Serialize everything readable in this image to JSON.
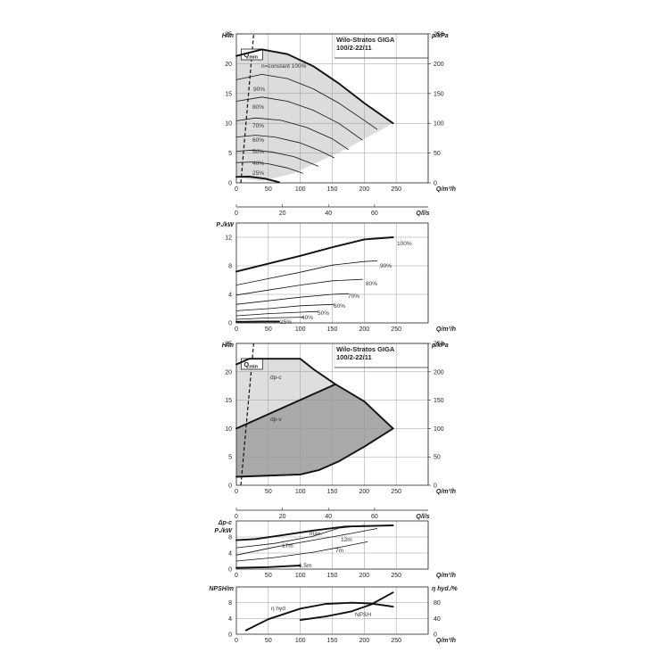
{
  "chart_data": [
    {
      "id": "head-speed",
      "type": "line",
      "title_lines": [
        "Wilo-Stratos GIGA",
        "100/2-22/11"
      ],
      "ylabel": "H/m",
      "ylabel_right": "p/kPa",
      "xlabel": "Q/m³/h",
      "xlabel_secondary": "Q/l/s",
      "xlim": [
        0,
        300
      ],
      "ylim": [
        0,
        25
      ],
      "x_ticks": [
        0,
        50,
        100,
        150,
        200,
        250
      ],
      "y_ticks": [
        0,
        5,
        10,
        15,
        20,
        25
      ],
      "right_ticks": [
        0,
        50,
        100,
        150,
        200,
        250
      ],
      "secondary_ticks": [
        0,
        20,
        40,
        60
      ],
      "qmin_label": "Q",
      "qmin_sub": "min",
      "qmin_line": [
        [
          7,
          0
        ],
        [
          27,
          25
        ]
      ],
      "operating_region": [
        [
          0,
          21.3
        ],
        [
          40,
          22.4
        ],
        [
          80,
          21.6
        ],
        [
          120,
          19.6
        ],
        [
          160,
          16.7
        ],
        [
          200,
          13.4
        ],
        [
          245,
          10
        ],
        [
          170,
          5.6
        ],
        [
          90,
          1.6
        ],
        [
          40,
          0.3
        ],
        [
          0,
          0.9
        ]
      ],
      "series": [
        {
          "name": "n=constant 100%",
          "bold": true,
          "points": [
            [
              0,
              21.3
            ],
            [
              40,
              22.4
            ],
            [
              80,
              21.6
            ],
            [
              120,
              19.6
            ],
            [
              160,
              16.7
            ],
            [
              200,
              13.4
            ],
            [
              245,
              10
            ]
          ]
        },
        {
          "name": "90%",
          "bold": false,
          "points": [
            [
              0,
              17.3
            ],
            [
              40,
              18.2
            ],
            [
              80,
              17.5
            ],
            [
              120,
              15.8
            ],
            [
              160,
              13.4
            ],
            [
              200,
              10.5
            ],
            [
              220,
              9.0
            ]
          ]
        },
        {
          "name": "80%",
          "bold": false,
          "points": [
            [
              0,
              13.7
            ],
            [
              40,
              14.4
            ],
            [
              80,
              13.7
            ],
            [
              120,
              12.2
            ],
            [
              160,
              10.0
            ],
            [
              197,
              7.2
            ]
          ]
        },
        {
          "name": "70%",
          "bold": false,
          "points": [
            [
              0,
              10.4
            ],
            [
              30,
              10.9
            ],
            [
              70,
              10.5
            ],
            [
              110,
              9.3
            ],
            [
              150,
              7.4
            ],
            [
              175,
              5.6
            ]
          ]
        },
        {
          "name": "60%",
          "bold": false,
          "points": [
            [
              0,
              7.7
            ],
            [
              30,
              8.0
            ],
            [
              60,
              7.7
            ],
            [
              100,
              6.7
            ],
            [
              130,
              5.4
            ],
            [
              153,
              4.2
            ]
          ]
        },
        {
          "name": "50%",
          "bold": false,
          "points": [
            [
              0,
              5.3
            ],
            [
              25,
              5.5
            ],
            [
              55,
              5.2
            ],
            [
              90,
              4.4
            ],
            [
              128,
              2.8
            ]
          ]
        },
        {
          "name": "40%",
          "bold": false,
          "points": [
            [
              0,
              3.4
            ],
            [
              25,
              3.5
            ],
            [
              50,
              3.2
            ],
            [
              80,
              2.5
            ],
            [
              104,
              1.6
            ]
          ]
        },
        {
          "name": "25%",
          "bold": true,
          "points": [
            [
              0,
              1.0
            ],
            [
              20,
              1.05
            ],
            [
              45,
              0.7
            ],
            [
              67,
              0.1
            ]
          ]
        }
      ]
    },
    {
      "id": "power-speed",
      "type": "line",
      "ylabel": "P₁/kW",
      "xlabel": "Q/m³/h",
      "xlim": [
        0,
        300
      ],
      "ylim": [
        0,
        14
      ],
      "x_ticks": [
        0,
        50,
        100,
        150,
        200,
        250
      ],
      "y_ticks": [
        0,
        4,
        8,
        12
      ],
      "series": [
        {
          "name": "100%",
          "bold": true,
          "points": [
            [
              0,
              7.2
            ],
            [
              50,
              8.3
            ],
            [
              100,
              9.4
            ],
            [
              150,
              10.6
            ],
            [
              200,
              11.7
            ],
            [
              245,
              12.0
            ]
          ]
        },
        {
          "name": "90%",
          "bold": false,
          "points": [
            [
              0,
              5.3
            ],
            [
              50,
              6.2
            ],
            [
              100,
              7.1
            ],
            [
              150,
              8.1
            ],
            [
              200,
              8.6
            ],
            [
              220,
              8.7
            ]
          ]
        },
        {
          "name": "80%",
          "bold": false,
          "points": [
            [
              0,
              3.9
            ],
            [
              50,
              4.6
            ],
            [
              100,
              5.3
            ],
            [
              150,
              5.9
            ],
            [
              197,
              6.1
            ]
          ]
        },
        {
          "name": "70%",
          "bold": false,
          "points": [
            [
              0,
              2.6
            ],
            [
              50,
              3.1
            ],
            [
              100,
              3.6
            ],
            [
              150,
              4.0
            ],
            [
              175,
              4.1
            ]
          ]
        },
        {
          "name": "60%",
          "bold": false,
          "points": [
            [
              0,
              1.7
            ],
            [
              50,
              2.0
            ],
            [
              100,
              2.4
            ],
            [
              153,
              2.6
            ]
          ]
        },
        {
          "name": "50%",
          "bold": false,
          "points": [
            [
              0,
              1.0
            ],
            [
              50,
              1.3
            ],
            [
              100,
              1.5
            ],
            [
              128,
              1.6
            ]
          ]
        },
        {
          "name": "40%",
          "bold": false,
          "points": [
            [
              0,
              0.5
            ],
            [
              50,
              0.7
            ],
            [
              104,
              0.8
            ]
          ]
        },
        {
          "name": "25%",
          "bold": true,
          "points": [
            [
              0,
              0.15
            ],
            [
              40,
              0.2
            ],
            [
              67,
              0.2
            ]
          ]
        }
      ]
    },
    {
      "id": "head-dp",
      "type": "area",
      "title_lines": [
        "Wilo-Stratos GIGA",
        "100/2-22/11"
      ],
      "ylabel": "H/m",
      "ylabel_right": "p/kPa",
      "xlabel": "Q/m³/h",
      "xlabel_secondary": "Q/l/s",
      "xlim": [
        0,
        300
      ],
      "ylim": [
        0,
        25
      ],
      "x_ticks": [
        0,
        50,
        100,
        150,
        200,
        250
      ],
      "y_ticks": [
        0,
        5,
        10,
        15,
        20,
        25
      ],
      "right_ticks": [
        0,
        50,
        100,
        150,
        200,
        250
      ],
      "secondary_ticks": [
        0,
        20,
        40,
        60
      ],
      "qmin_label": "Q",
      "qmin_sub": "min",
      "qmin_line": [
        [
          7,
          0
        ],
        [
          27,
          25
        ]
      ],
      "dpc_region": [
        [
          0,
          21.3
        ],
        [
          20,
          22.3
        ],
        [
          100,
          22.3
        ],
        [
          120,
          20.5
        ],
        [
          155,
          17.8
        ],
        [
          200,
          14.8
        ],
        [
          245,
          10
        ],
        [
          200,
          6.8
        ],
        [
          160,
          4.2
        ],
        [
          130,
          2.7
        ],
        [
          100,
          1.9
        ],
        [
          0,
          1.5
        ]
      ],
      "dpv_region": [
        [
          0,
          10
        ],
        [
          155,
          17.8
        ],
        [
          200,
          14.8
        ],
        [
          245,
          10
        ],
        [
          200,
          6.8
        ],
        [
          160,
          4.2
        ],
        [
          130,
          2.7
        ],
        [
          100,
          1.9
        ],
        [
          0,
          1.5
        ]
      ],
      "series": [
        {
          "name": "dp-c",
          "bold": true,
          "points": [
            [
              0,
              21.3
            ],
            [
              20,
              22.3
            ],
            [
              100,
              22.3
            ],
            [
              120,
              20.5
            ],
            [
              155,
              17.8
            ],
            [
              200,
              14.8
            ],
            [
              245,
              10
            ]
          ]
        },
        {
          "name": "dp-v",
          "bold": true,
          "points": [
            [
              0,
              10
            ],
            [
              155,
              17.8
            ]
          ]
        },
        {
          "name": "",
          "bold": true,
          "points": [
            [
              0,
              1.5
            ],
            [
              100,
              1.9
            ],
            [
              130,
              2.7
            ],
            [
              160,
              4.2
            ],
            [
              200,
              6.8
            ],
            [
              245,
              10
            ]
          ]
        }
      ]
    },
    {
      "id": "power-dp",
      "type": "line",
      "ylabel_top": "Δp-c",
      "ylabel": "P₁/kW",
      "xlabel": "Q/m³/h",
      "xlim": [
        0,
        300
      ],
      "ylim": [
        0,
        12
      ],
      "x_ticks": [
        0,
        50,
        100,
        150,
        200,
        250
      ],
      "y_ticks": [
        0,
        4,
        8
      ],
      "series": [
        {
          "name": "max.",
          "bold": true,
          "points": [
            [
              0,
              7.2
            ],
            [
              30,
              7.5
            ],
            [
              70,
              8.4
            ],
            [
              120,
              9.6
            ],
            [
              170,
              10.6
            ],
            [
              245,
              10.9
            ]
          ]
        },
        {
          "name": "17m",
          "bold": false,
          "points": [
            [
              0,
              5.3
            ],
            [
              60,
              6.4
            ],
            [
              120,
              8.2
            ],
            [
              160,
              10.2
            ],
            [
              200,
              10.9
            ]
          ]
        },
        {
          "name": "12m",
          "bold": false,
          "points": [
            [
              0,
              3.5
            ],
            [
              60,
              5.5
            ],
            [
              120,
              7.2
            ],
            [
              180,
              8.9
            ],
            [
              220,
              10.1
            ]
          ]
        },
        {
          "name": "7m",
          "bold": false,
          "points": [
            [
              0,
              2.0
            ],
            [
              60,
              2.9
            ],
            [
              120,
              4.2
            ],
            [
              170,
              5.7
            ],
            [
              205,
              6.8
            ]
          ]
        },
        {
          "name": "1.5m",
          "bold": true,
          "points": [
            [
              0,
              0.3
            ],
            [
              50,
              0.5
            ],
            [
              100,
              0.9
            ]
          ]
        }
      ]
    },
    {
      "id": "npsh-eff",
      "type": "line",
      "ylabel": "NPSH/m",
      "ylabel_right": "η hyd./%",
      "xlabel": "Q/m³/h",
      "xlim": [
        0,
        300
      ],
      "ylim": [
        0,
        12
      ],
      "x_ticks": [
        0,
        50,
        100,
        150,
        200,
        250
      ],
      "y_ticks": [
        0,
        4,
        8
      ],
      "right_ticks": [
        0,
        40,
        80
      ],
      "right_lim": [
        0,
        120
      ],
      "series": [
        {
          "name": "η hyd",
          "bold": true,
          "axis": "right",
          "points": [
            [
              15,
              10
            ],
            [
              50,
              38
            ],
            [
              100,
              65
            ],
            [
              140,
              77
            ],
            [
              180,
              80
            ],
            [
              210,
              78
            ],
            [
              245,
              70
            ]
          ]
        },
        {
          "name": "NPSH",
          "bold": true,
          "axis": "left",
          "points": [
            [
              100,
              3.6
            ],
            [
              140,
              4.5
            ],
            [
              180,
              5.8
            ],
            [
              210,
              7.5
            ],
            [
              245,
              10.6
            ]
          ]
        }
      ]
    }
  ]
}
